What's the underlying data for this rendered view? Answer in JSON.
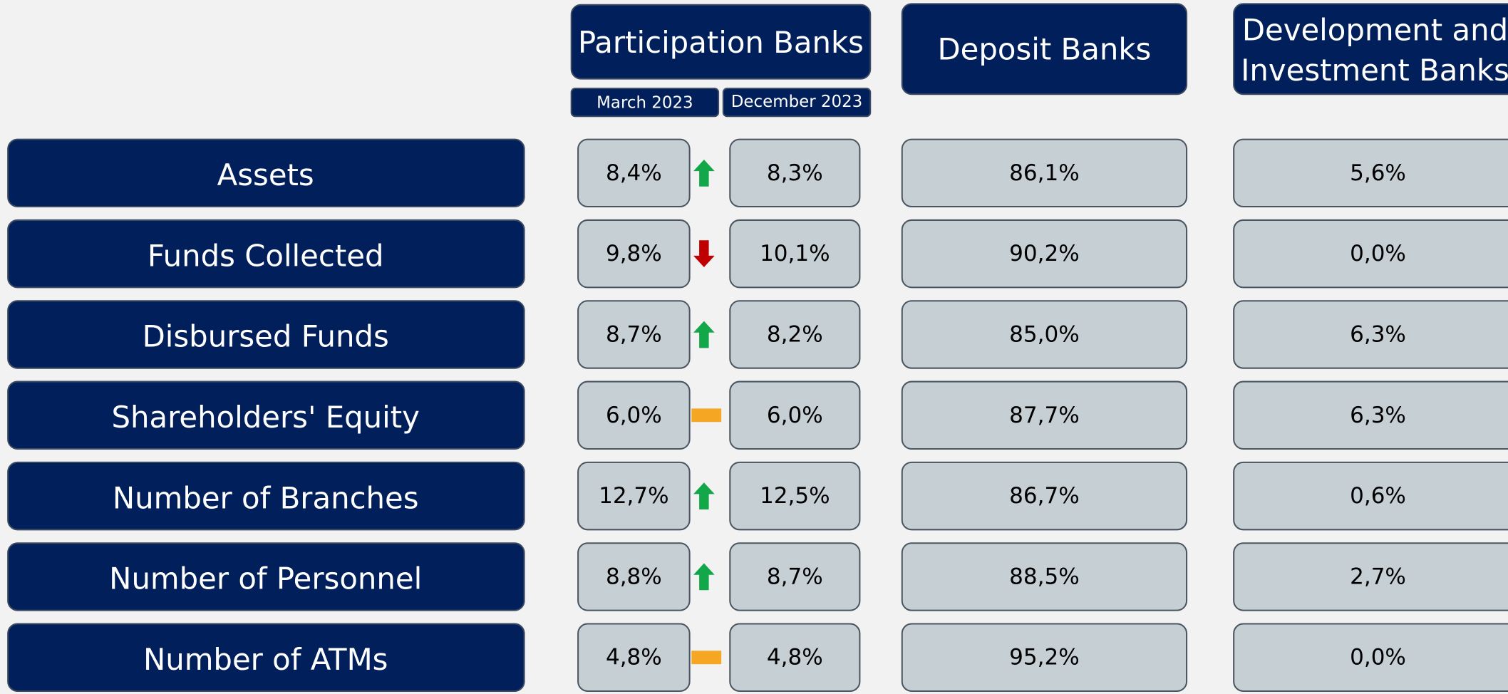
{
  "headers": {
    "participation": "Participation Banks",
    "march": "March 2023",
    "december": "December 2023",
    "deposit": "Deposit Banks",
    "development": [
      "Development and",
      "Investment Banks"
    ]
  },
  "rows": [
    {
      "label": "Assets",
      "march": "8,4%",
      "december": "8,3%",
      "deposit": "86,1%",
      "development": "5,6%"
    },
    {
      "label": "Funds Collected",
      "march": "9,8%",
      "december": "10,1%",
      "deposit": "90,2%",
      "development": "0,0%"
    },
    {
      "label": "Disbursed Funds",
      "march": "8,7%",
      "december": "8,2%",
      "deposit": "85,0%",
      "development": "6,3%"
    },
    {
      "label": "Shareholders' Equity",
      "march": "6,0%",
      "december": "6,0%",
      "deposit": "87,7%",
      "development": "6,3%"
    },
    {
      "label": "Number of Branches",
      "march": "12,7%",
      "december": "12,5%",
      "deposit": "86,7%",
      "development": "0,6%"
    },
    {
      "label": "Number of Personnel",
      "march": "8,8%",
      "december": "8,7%",
      "deposit": "88,5%",
      "development": "2,7%"
    },
    {
      "label": "Number of ATMs",
      "march": "4,8%",
      "december": "4,8%",
      "deposit": "95,2%",
      "development": "0,0%"
    }
  ]
}
